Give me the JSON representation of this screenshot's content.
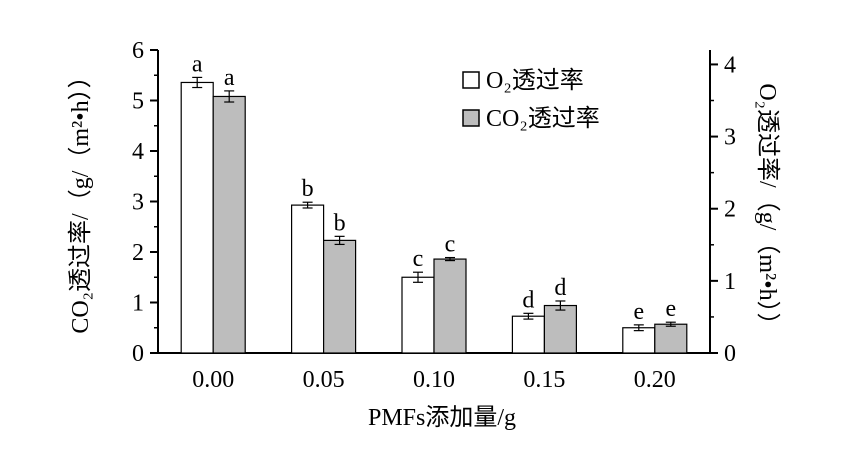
{
  "chart_data": {
    "type": "bar",
    "categories": [
      "0.00",
      "0.05",
      "0.10",
      "0.15",
      "0.20"
    ],
    "series": [
      {
        "name": "O₂透过率",
        "axis": "right",
        "color": "#ffffff",
        "values": [
          3.75,
          2.05,
          1.05,
          0.51,
          0.35
        ],
        "errors": [
          0.07,
          0.04,
          0.07,
          0.04,
          0.04
        ],
        "letters": [
          "a",
          "b",
          "c",
          "d",
          "e"
        ]
      },
      {
        "name": "CO₂透过率",
        "axis": "left",
        "color": "#bdbdbd",
        "values": [
          5.08,
          2.23,
          1.86,
          0.94,
          0.57
        ],
        "errors": [
          0.11,
          0.08,
          0.03,
          0.09,
          0.04
        ],
        "letters": [
          "a",
          "b",
          "c",
          "d",
          "e"
        ]
      }
    ],
    "xlabel": "PMFs添加量/g",
    "ylabel_left": "CO₂透过率/（g/（m²•h））",
    "ylabel_right": "O₂透过率/（g/（m²•h））",
    "ylim_left": [
      0,
      6
    ],
    "ylim_right": [
      0,
      4.2
    ],
    "yticks_left": [
      "0",
      "1",
      "2",
      "3",
      "4",
      "5",
      "6"
    ],
    "yticks_right": [
      "0",
      "1",
      "2",
      "3",
      "4"
    ],
    "legend_position": "top-right",
    "grid": false
  }
}
